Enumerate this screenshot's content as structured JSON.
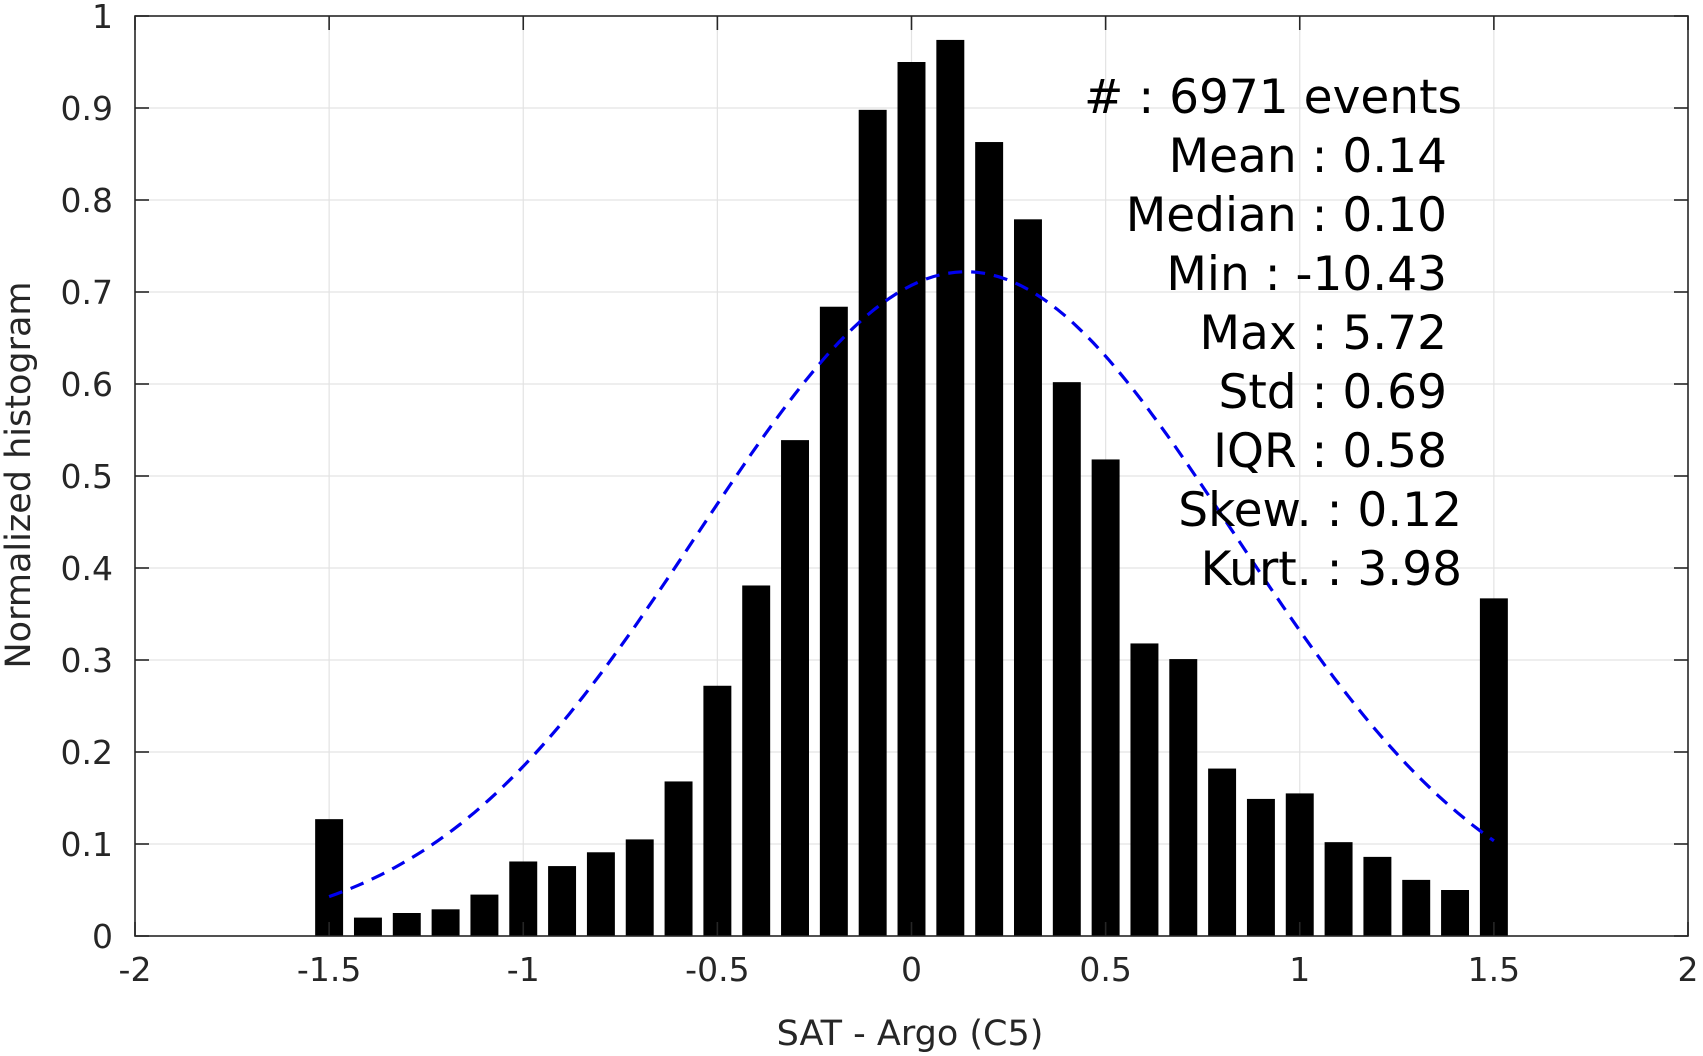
{
  "chart_data": {
    "type": "bar",
    "xlabel": "SAT - Argo (C5)",
    "ylabel": "Normalized histogram",
    "xlim": [
      -2,
      2
    ],
    "ylim": [
      0,
      1
    ],
    "xticks": [
      -2,
      -1.5,
      -1,
      -0.5,
      0,
      0.5,
      1,
      1.5,
      2
    ],
    "xtick_labels": [
      "-2",
      "-1.5",
      "-1",
      "-0.5",
      "0",
      "0.5",
      "1",
      "1.5",
      "2"
    ],
    "yticks": [
      0,
      0.1,
      0.2,
      0.3,
      0.4,
      0.5,
      0.6,
      0.7,
      0.8,
      0.9,
      1
    ],
    "ytick_labels": [
      "0",
      "0.1",
      "0.2",
      "0.3",
      "0.4",
      "0.5",
      "0.6",
      "0.7",
      "0.8",
      "0.9",
      "1"
    ],
    "grid": true,
    "bar_color": "#000000",
    "bin_width": 0.1,
    "bins": [
      {
        "x": -1.5,
        "value": 0.127
      },
      {
        "x": -1.4,
        "value": 0.02
      },
      {
        "x": -1.3,
        "value": 0.025
      },
      {
        "x": -1.2,
        "value": 0.029
      },
      {
        "x": -1.1,
        "value": 0.045
      },
      {
        "x": -1.0,
        "value": 0.081
      },
      {
        "x": -0.9,
        "value": 0.076
      },
      {
        "x": -0.8,
        "value": 0.091
      },
      {
        "x": -0.7,
        "value": 0.105
      },
      {
        "x": -0.6,
        "value": 0.168
      },
      {
        "x": -0.5,
        "value": 0.272
      },
      {
        "x": -0.4,
        "value": 0.381
      },
      {
        "x": -0.3,
        "value": 0.539
      },
      {
        "x": -0.2,
        "value": 0.684
      },
      {
        "x": -0.1,
        "value": 0.898
      },
      {
        "x": 0.0,
        "value": 0.95
      },
      {
        "x": 0.1,
        "value": 0.974
      },
      {
        "x": 0.2,
        "value": 0.863
      },
      {
        "x": 0.3,
        "value": 0.779
      },
      {
        "x": 0.4,
        "value": 0.602
      },
      {
        "x": 0.5,
        "value": 0.518
      },
      {
        "x": 0.6,
        "value": 0.318
      },
      {
        "x": 0.7,
        "value": 0.301
      },
      {
        "x": 0.8,
        "value": 0.182
      },
      {
        "x": 0.9,
        "value": 0.149
      },
      {
        "x": 1.0,
        "value": 0.155
      },
      {
        "x": 1.1,
        "value": 0.102
      },
      {
        "x": 1.2,
        "value": 0.086
      },
      {
        "x": 1.3,
        "value": 0.061
      },
      {
        "x": 1.4,
        "value": 0.05
      },
      {
        "x": 1.5,
        "value": 0.367
      }
    ],
    "fit_curve": {
      "style": "dashed",
      "color": "#0000ee",
      "mean": 0.14,
      "std": 0.69,
      "peak": 0.722,
      "x_range": [
        -1.5,
        1.5
      ]
    },
    "annotations": [
      {
        "key": "count",
        "text": "#  : 6971 events"
      },
      {
        "key": "mean",
        "text": "Mean : 0.14"
      },
      {
        "key": "median",
        "text": "Median : 0.10"
      },
      {
        "key": "min",
        "text": "Min : -10.43"
      },
      {
        "key": "max",
        "text": "Max : 5.72"
      },
      {
        "key": "std",
        "text": "Std : 0.69"
      },
      {
        "key": "iqr",
        "text": "IQR : 0.58"
      },
      {
        "key": "skew",
        "text": "Skew. : 0.12"
      },
      {
        "key": "kurt",
        "text": "Kurt. : 3.98"
      }
    ]
  }
}
